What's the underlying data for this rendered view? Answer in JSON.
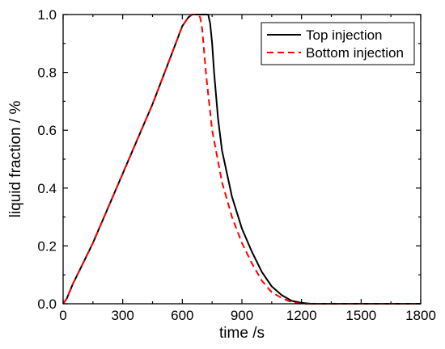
{
  "chart_data": {
    "type": "line",
    "xlabel": "time /s",
    "ylabel": "liquid fraction / %",
    "xlim": [
      0,
      1800
    ],
    "ylim": [
      0,
      1.0
    ],
    "xticks": [
      0,
      300,
      600,
      900,
      1200,
      1500,
      1800
    ],
    "yticks": [
      0.0,
      0.2,
      0.4,
      0.6,
      0.8,
      1.0
    ],
    "xtick_labels": [
      "0",
      "300",
      "600",
      "900",
      "1200",
      "1500",
      "1800"
    ],
    "ytick_labels": [
      "0.0",
      "0.2",
      "0.4",
      "0.6",
      "0.8",
      "1.0"
    ],
    "grid": false,
    "legend_position": "top-right",
    "series": [
      {
        "name": "Top injection",
        "color": "#000000",
        "dash": "solid",
        "x": [
          0,
          20,
          50,
          100,
          150,
          200,
          250,
          300,
          350,
          400,
          450,
          500,
          550,
          600,
          630,
          650,
          670,
          700,
          720,
          730,
          740,
          750,
          760,
          780,
          800,
          850,
          900,
          950,
          1000,
          1050,
          1100,
          1150,
          1200,
          1250,
          1300,
          1800
        ],
        "y": [
          0.0,
          0.02,
          0.07,
          0.14,
          0.21,
          0.29,
          0.37,
          0.45,
          0.53,
          0.61,
          0.69,
          0.78,
          0.87,
          0.96,
          0.99,
          1.0,
          1.0,
          1.0,
          1.0,
          1.0,
          0.97,
          0.9,
          0.8,
          0.64,
          0.53,
          0.37,
          0.26,
          0.18,
          0.11,
          0.06,
          0.03,
          0.01,
          0.003,
          0.0,
          0.0,
          0.0
        ]
      },
      {
        "name": "Bottom injection",
        "color": "#ff0000",
        "dash": "dashed",
        "x": [
          0,
          20,
          50,
          100,
          150,
          200,
          250,
          300,
          350,
          400,
          450,
          500,
          550,
          600,
          630,
          650,
          670,
          680,
          690,
          700,
          720,
          750,
          800,
          850,
          900,
          950,
          1000,
          1050,
          1100,
          1150,
          1200,
          1250,
          1800
        ],
        "y": [
          0.0,
          0.02,
          0.07,
          0.14,
          0.21,
          0.29,
          0.37,
          0.45,
          0.53,
          0.61,
          0.69,
          0.78,
          0.87,
          0.96,
          0.99,
          1.0,
          1.0,
          1.0,
          0.99,
          0.95,
          0.79,
          0.6,
          0.42,
          0.3,
          0.21,
          0.14,
          0.08,
          0.04,
          0.02,
          0.005,
          0.0,
          0.0,
          0.0
        ]
      }
    ]
  }
}
